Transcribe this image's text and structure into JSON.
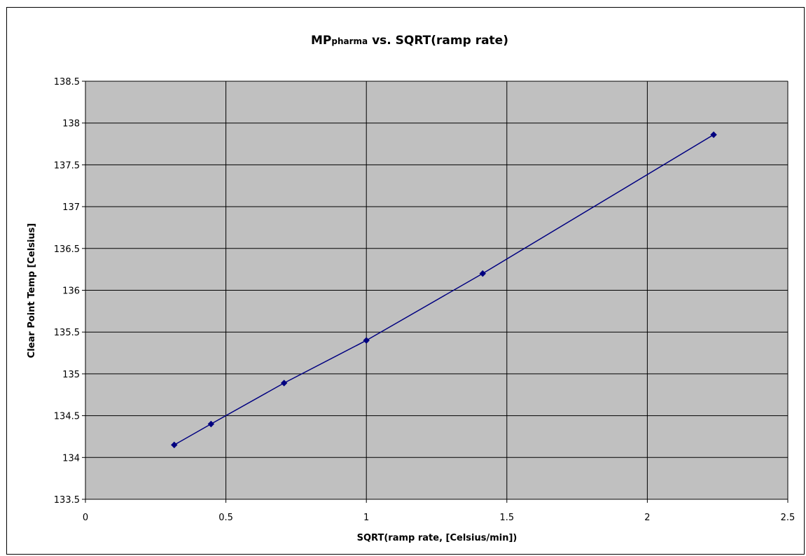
{
  "chart_data": {
    "type": "line",
    "title_main": "MP",
    "title_sub": "pharma",
    "title_rest": " vs. SQRT(ramp rate)",
    "xlabel": "SQRT(ramp rate, [Celsius/min])",
    "ylabel": "Clear Point Temp [Celsius]",
    "xlim": [
      0,
      2.5
    ],
    "ylim": [
      133.5,
      138.5
    ],
    "xticks": [
      "0",
      "0.5",
      "1",
      "1.5",
      "2",
      "2.5"
    ],
    "yticks": [
      "133.5",
      "134",
      "134.5",
      "135",
      "135.5",
      "136",
      "136.5",
      "137",
      "137.5",
      "138",
      "138.5"
    ],
    "grid": true,
    "legend": "none",
    "colors": {
      "plot_bg": "#c0c0c0",
      "series": "#000080",
      "grid": "#000000"
    },
    "series": [
      {
        "x": [
          0.316,
          0.447,
          0.707,
          1.0,
          1.414,
          2.236
        ],
        "y": [
          134.15,
          134.4,
          134.89,
          135.4,
          136.2,
          137.86
        ]
      }
    ]
  }
}
